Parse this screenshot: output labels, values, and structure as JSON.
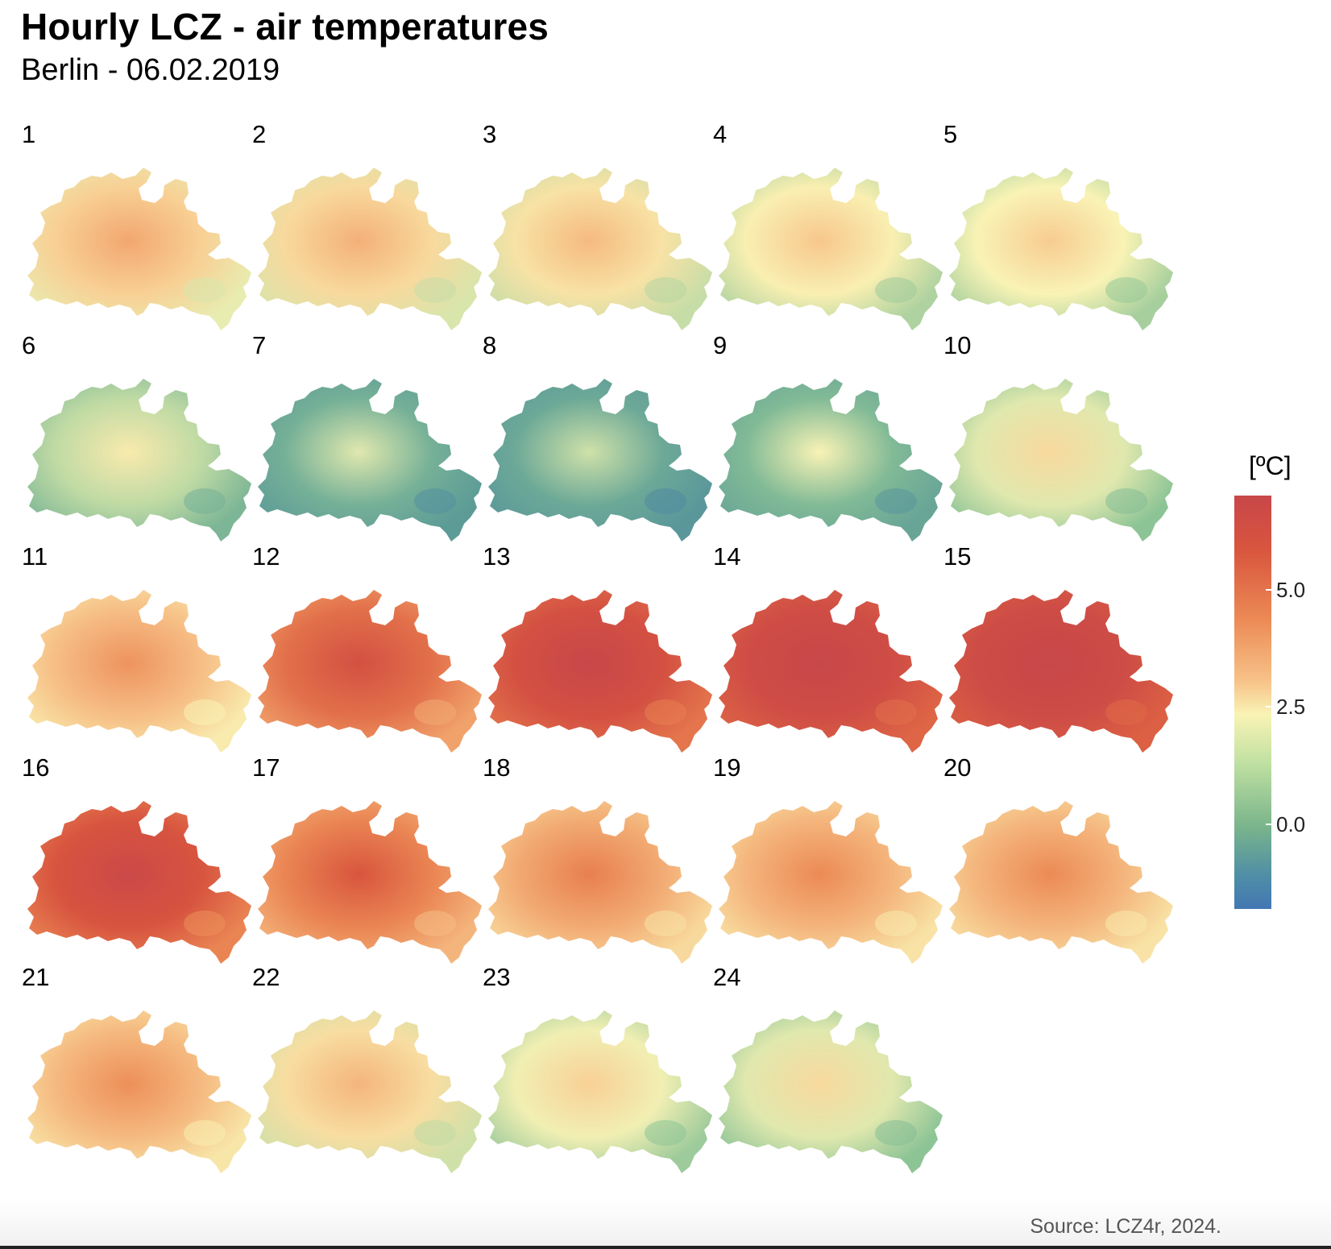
{
  "title": "Hourly LCZ - air temperatures",
  "subtitle": "Berlin - 06.02.2019",
  "source": "Source: LCZ4r, 2024.",
  "legend": {
    "title": "[ºC]",
    "ticks": [
      "5.0",
      "2.5",
      "0.0"
    ],
    "range": [
      -1.8,
      7.0
    ]
  },
  "palette": {
    "hot": "#c8474a",
    "warm": "#ec8a55",
    "mild": "#f9f3b5",
    "cool": "#7ab58b",
    "cold": "#4277b3"
  },
  "panels": [
    {
      "label": "1",
      "temp": 3.3
    },
    {
      "label": "2",
      "temp": 3.1
    },
    {
      "label": "3",
      "temp": 2.9
    },
    {
      "label": "4",
      "temp": 2.6
    },
    {
      "label": "5",
      "temp": 2.5
    },
    {
      "label": "6",
      "temp": 1.8
    },
    {
      "label": "7",
      "temp": 0.6
    },
    {
      "label": "8",
      "temp": 0.4
    },
    {
      "label": "9",
      "temp": 0.9
    },
    {
      "label": "10",
      "temp": 2.2
    },
    {
      "label": "11",
      "temp": 3.7
    },
    {
      "label": "12",
      "temp": 5.3
    },
    {
      "label": "13",
      "temp": 6.2
    },
    {
      "label": "14",
      "temp": 6.5
    },
    {
      "label": "15",
      "temp": 6.6
    },
    {
      "label": "16",
      "temp": 5.9
    },
    {
      "label": "17",
      "temp": 4.9
    },
    {
      "label": "18",
      "temp": 4.1
    },
    {
      "label": "19",
      "temp": 3.9
    },
    {
      "label": "20",
      "temp": 3.9
    },
    {
      "label": "21",
      "temp": 3.8
    },
    {
      "label": "22",
      "temp": 3.0
    },
    {
      "label": "23",
      "temp": 2.4
    },
    {
      "label": "24",
      "temp": 2.2
    }
  ]
}
